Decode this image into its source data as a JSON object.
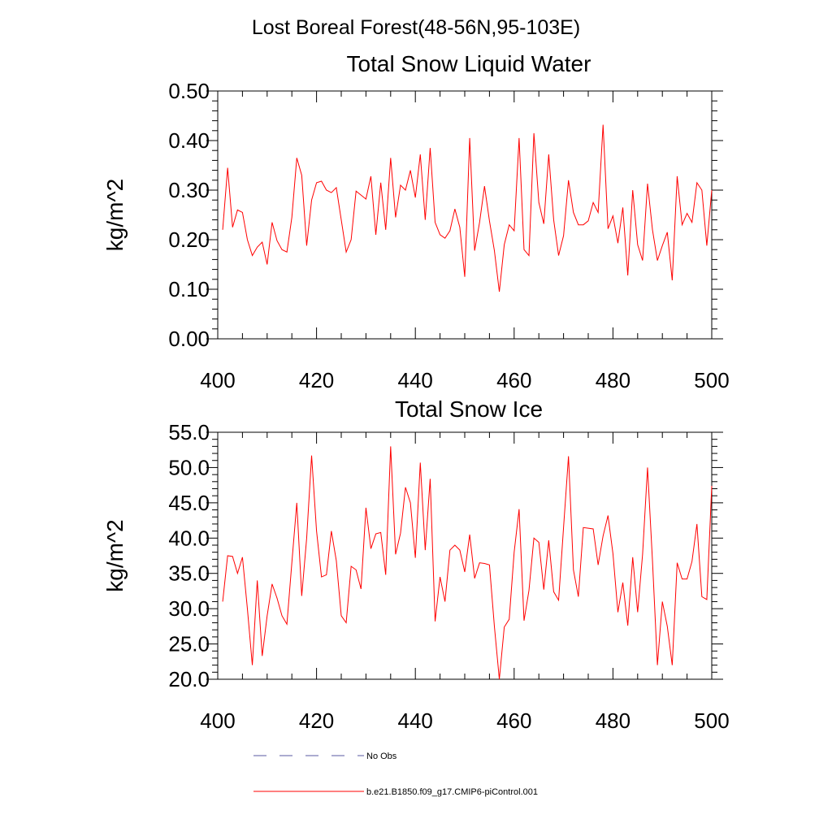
{
  "page": {
    "suptitle": "Lost Boreal Forest(48-56N,95-103E)"
  },
  "colors": {
    "model_line": "#ff0000",
    "obs_line": "#5a5aa0",
    "axis": "#000000"
  },
  "legend": {
    "items": [
      {
        "label": "No Obs",
        "style": "dashed"
      },
      {
        "label": "b.e21.B1850.f09_g17.CMIP6-piControl.001",
        "style": "solid"
      }
    ]
  },
  "chart_data": [
    {
      "type": "line",
      "title": "Total Snow Liquid Water",
      "xlabel": "",
      "ylabel": "kg/m^2",
      "xlim": [
        400,
        500
      ],
      "ylim": [
        0.0,
        0.5
      ],
      "xticks": [
        400,
        420,
        440,
        460,
        480,
        500
      ],
      "xtick_labels": [
        "400",
        "420",
        "440",
        "460",
        "480",
        "500"
      ],
      "yticks": [
        0.0,
        0.1,
        0.2,
        0.3,
        0.4,
        0.5
      ],
      "ytick_labels": [
        "0.00",
        "0.10",
        "0.20",
        "0.30",
        "0.40",
        "0.50"
      ],
      "series": [
        {
          "name": "b.e21.B1850.f09_g17.CMIP6-piControl.001",
          "x": [
            401,
            402,
            403,
            404,
            405,
            406,
            407,
            408,
            409,
            410,
            411,
            412,
            413,
            414,
            415,
            416,
            417,
            418,
            419,
            420,
            421,
            422,
            423,
            424,
            425,
            426,
            427,
            428,
            429,
            430,
            431,
            432,
            433,
            434,
            435,
            436,
            437,
            438,
            439,
            440,
            441,
            442,
            443,
            444,
            445,
            446,
            447,
            448,
            449,
            450,
            451,
            452,
            453,
            454,
            455,
            456,
            457,
            458,
            459,
            460,
            461,
            462,
            463,
            464,
            465,
            466,
            467,
            468,
            469,
            470,
            471,
            472,
            473,
            474,
            475,
            476,
            477,
            478,
            479,
            480,
            481,
            482,
            483,
            484,
            485,
            486,
            487,
            488,
            489,
            490,
            491,
            492,
            493,
            494,
            495,
            496,
            497,
            498,
            499,
            500
          ],
          "values": [
            0.22,
            0.345,
            0.225,
            0.26,
            0.255,
            0.2,
            0.168,
            0.185,
            0.195,
            0.15,
            0.235,
            0.198,
            0.18,
            0.175,
            0.245,
            0.365,
            0.33,
            0.188,
            0.28,
            0.315,
            0.318,
            0.3,
            0.295,
            0.305,
            0.24,
            0.175,
            0.2,
            0.298,
            0.29,
            0.282,
            0.328,
            0.21,
            0.315,
            0.22,
            0.365,
            0.245,
            0.31,
            0.3,
            0.34,
            0.285,
            0.372,
            0.24,
            0.385,
            0.235,
            0.21,
            0.203,
            0.218,
            0.262,
            0.225,
            0.125,
            0.405,
            0.178,
            0.235,
            0.308,
            0.238,
            0.178,
            0.095,
            0.19,
            0.23,
            0.218,
            0.405,
            0.18,
            0.168,
            0.415,
            0.275,
            0.232,
            0.372,
            0.24,
            0.168,
            0.208,
            0.32,
            0.255,
            0.23,
            0.23,
            0.238,
            0.275,
            0.255,
            0.432,
            0.222,
            0.248,
            0.193,
            0.265,
            0.128,
            0.3,
            0.19,
            0.158,
            0.313,
            0.22,
            0.158,
            0.188,
            0.215,
            0.118,
            0.328,
            0.23,
            0.253,
            0.235,
            0.315,
            0.3,
            0.188,
            0.3
          ]
        }
      ]
    },
    {
      "type": "line",
      "title": "Total Snow Ice",
      "xlabel": "",
      "ylabel": "kg/m^2",
      "xlim": [
        400,
        500
      ],
      "ylim": [
        20.0,
        55.0
      ],
      "xticks": [
        400,
        420,
        440,
        460,
        480,
        500
      ],
      "xtick_labels": [
        "400",
        "420",
        "440",
        "460",
        "480",
        "500"
      ],
      "yticks": [
        20,
        25,
        30,
        35,
        40,
        45,
        50,
        55
      ],
      "ytick_labels": [
        "20.0",
        "25.0",
        "30.0",
        "35.0",
        "40.0",
        "45.0",
        "50.0",
        "55.0"
      ],
      "series": [
        {
          "name": "b.e21.B1850.f09_g17.CMIP6-piControl.001",
          "x": [
            401,
            402,
            403,
            404,
            405,
            406,
            407,
            408,
            409,
            410,
            411,
            412,
            413,
            414,
            415,
            416,
            417,
            418,
            419,
            420,
            421,
            422,
            423,
            424,
            425,
            426,
            427,
            428,
            429,
            430,
            431,
            432,
            433,
            434,
            435,
            436,
            437,
            438,
            439,
            440,
            441,
            442,
            443,
            444,
            445,
            446,
            447,
            448,
            449,
            450,
            451,
            452,
            453,
            454,
            455,
            456,
            457,
            458,
            459,
            460,
            461,
            462,
            463,
            464,
            465,
            466,
            467,
            468,
            469,
            470,
            471,
            472,
            473,
            474,
            475,
            476,
            477,
            478,
            479,
            480,
            481,
            482,
            483,
            484,
            485,
            486,
            487,
            488,
            489,
            490,
            491,
            492,
            493,
            494,
            495,
            496,
            497,
            498,
            499,
            500
          ],
          "values": [
            31.0,
            37.5,
            37.4,
            35.0,
            37.3,
            30.0,
            22.0,
            34.0,
            23.3,
            29.0,
            33.5,
            31.5,
            29.0,
            27.8,
            36.5,
            45.0,
            31.8,
            40.0,
            51.7,
            41.0,
            34.5,
            34.8,
            41.0,
            36.8,
            29.0,
            28.0,
            36.0,
            35.5,
            32.8,
            44.3,
            38.5,
            40.6,
            40.8,
            34.8,
            53.0,
            37.7,
            40.7,
            47.2,
            45.0,
            37.2,
            50.7,
            38.3,
            48.4,
            28.2,
            34.5,
            31.0,
            38.3,
            39.0,
            38.3,
            35.2,
            40.5,
            34.3,
            36.5,
            36.4,
            36.2,
            27.5,
            20.0,
            27.4,
            28.5,
            38.0,
            44.1,
            28.3,
            32.6,
            40.0,
            39.4,
            32.7,
            39.7,
            32.4,
            31.2,
            41.5,
            51.6,
            35.5,
            31.7,
            41.5,
            41.4,
            41.3,
            36.2,
            40.3,
            43.2,
            37.8,
            29.5,
            33.7,
            27.6,
            37.3,
            29.5,
            37.7,
            50.0,
            36.8,
            22.0,
            31.0,
            27.5,
            22.0,
            36.5,
            34.2,
            34.2,
            36.7,
            42.0,
            31.7,
            31.3,
            47.4
          ]
        }
      ]
    }
  ]
}
